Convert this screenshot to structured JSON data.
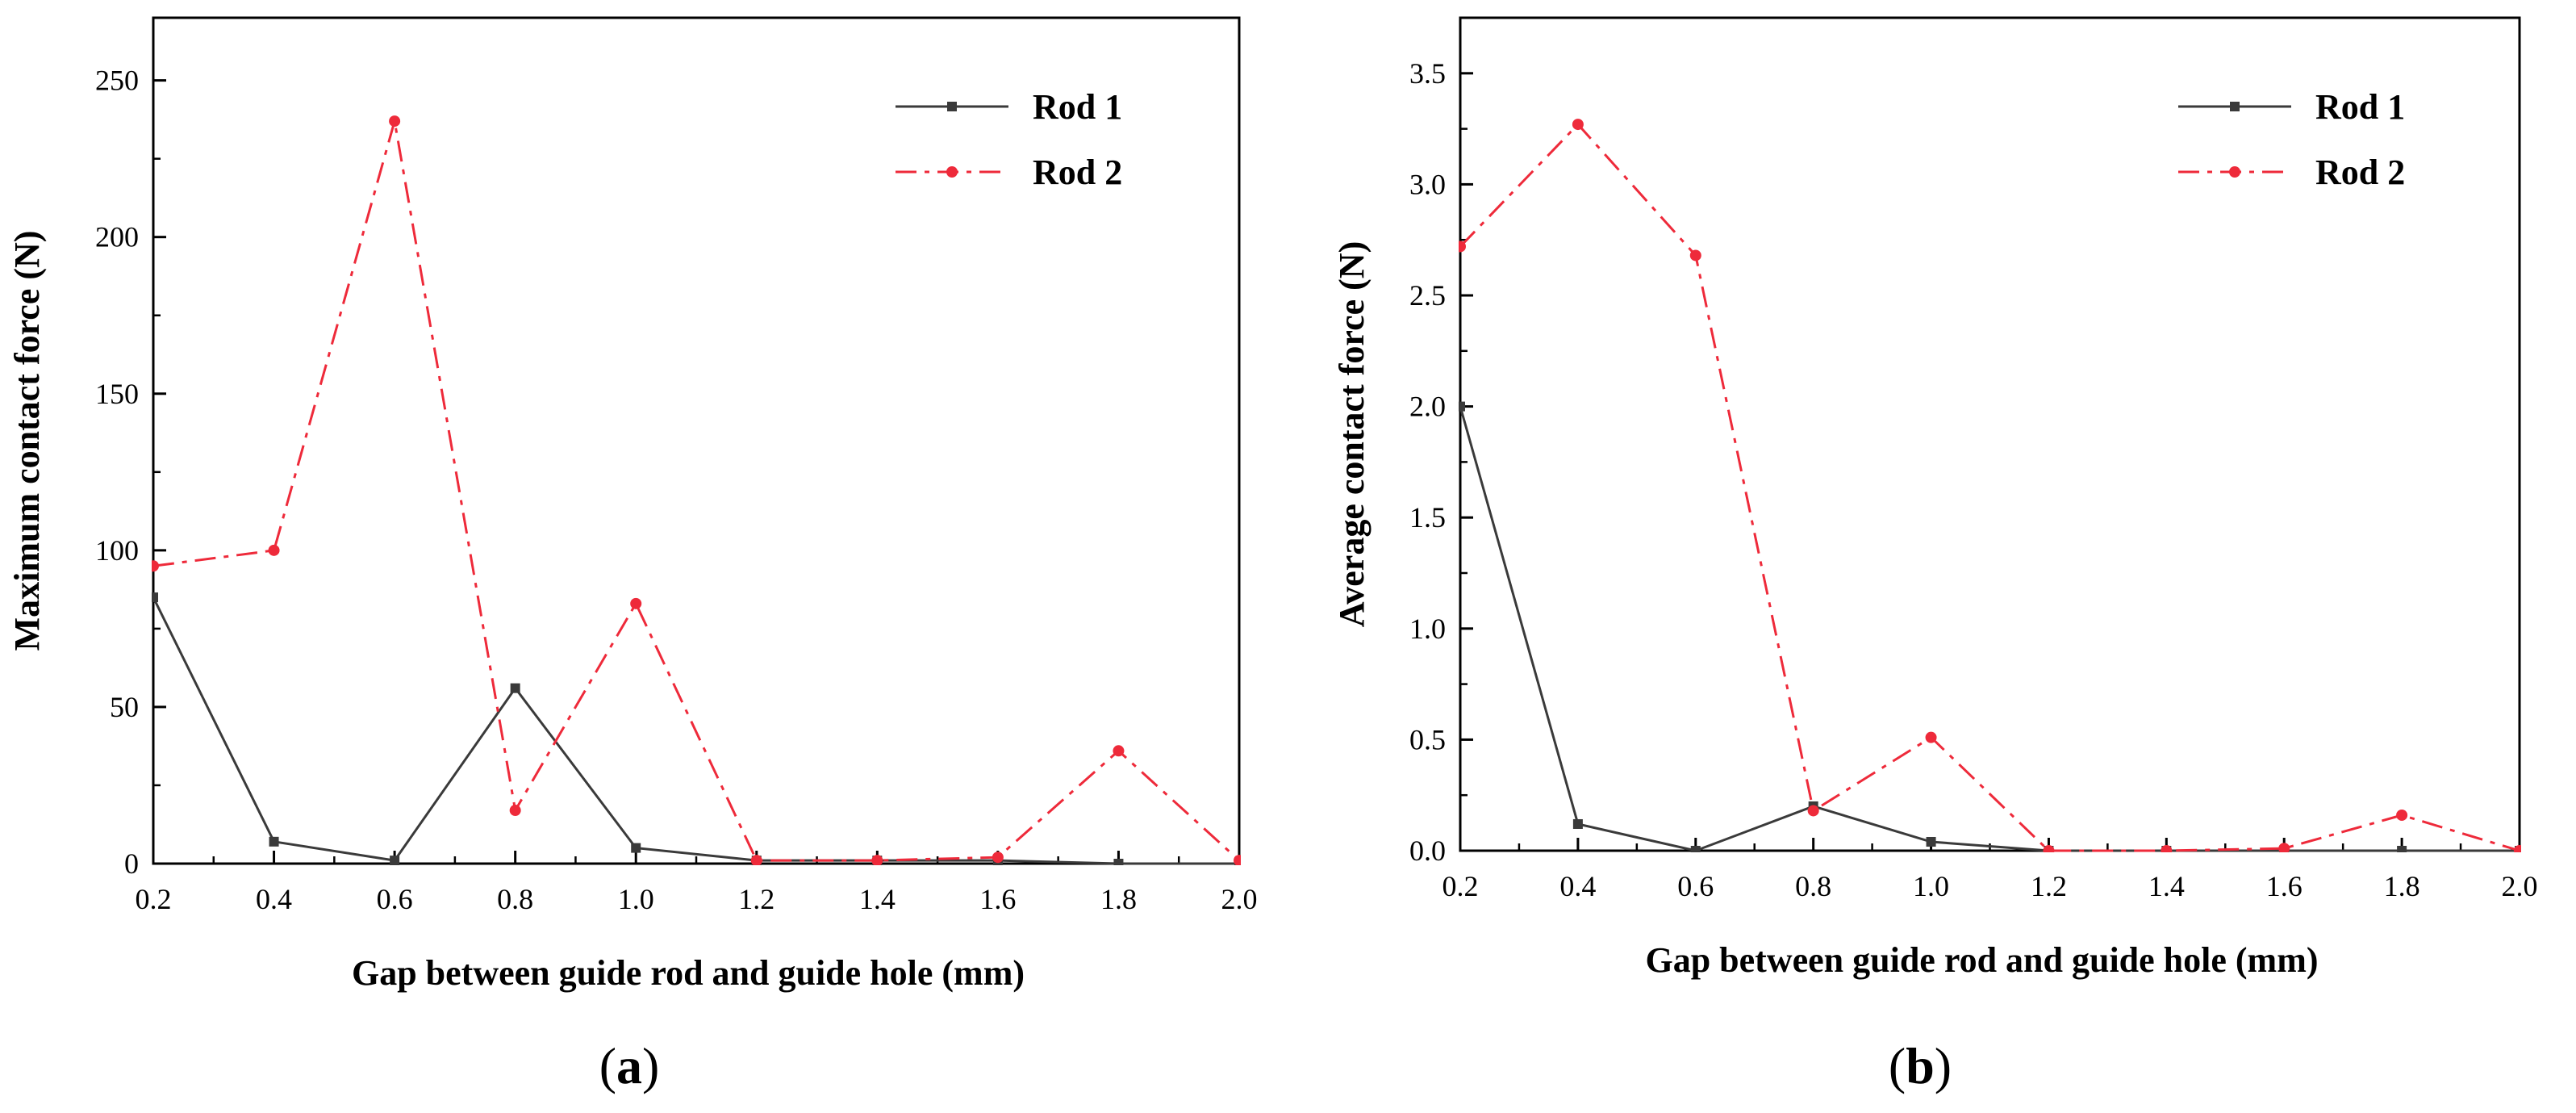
{
  "chart_data": [
    {
      "type": "line",
      "panel_label": "(a)",
      "panel_letter": "a",
      "xlabel": "Gap between guide rod and guide hole (mm)",
      "ylabel": "Maximum contact force (N)",
      "xlim": [
        0.2,
        2.0
      ],
      "ylim": [
        0,
        270
      ],
      "x_ticks": [
        "0.2",
        "0.4",
        "0.6",
        "0.8",
        "1.0",
        "1.2",
        "1.4",
        "1.6",
        "1.8",
        "2.0"
      ],
      "y_ticks": [
        "0",
        "50",
        "100",
        "150",
        "200",
        "250"
      ],
      "legend_position": "top-right",
      "x": [
        0.2,
        0.4,
        0.6,
        0.8,
        1.0,
        1.2,
        1.4,
        1.6,
        1.8,
        2.0
      ],
      "series": [
        {
          "name": "Rod 1",
          "color": "#3a3a3a",
          "style": "solid",
          "marker": "square",
          "values": [
            85,
            7,
            1,
            56,
            5,
            1,
            1,
            1,
            0,
            0
          ]
        },
        {
          "name": "Rod 2",
          "color": "#ee2a3a",
          "style": "dash-dot",
          "marker": "circle",
          "values": [
            95,
            100,
            237,
            17,
            83,
            1,
            1,
            2,
            36,
            1
          ]
        }
      ]
    },
    {
      "type": "line",
      "panel_label": "(b)",
      "panel_letter": "b",
      "xlabel": "Gap between guide rod and guide hole (mm)",
      "ylabel": "Average contact force (N)",
      "xlim": [
        0.2,
        2.0
      ],
      "ylim": [
        0,
        3.75
      ],
      "x_ticks": [
        "0.2",
        "0.4",
        "0.6",
        "0.8",
        "1.0",
        "1.2",
        "1.4",
        "1.6",
        "1.8",
        "2.0"
      ],
      "y_ticks": [
        "0.0",
        "0.5",
        "1.0",
        "1.5",
        "2.0",
        "2.5",
        "3.0",
        "3.5"
      ],
      "legend_position": "top-right",
      "x": [
        0.2,
        0.4,
        0.6,
        0.8,
        1.0,
        1.2,
        1.4,
        1.6,
        1.8,
        2.0
      ],
      "series": [
        {
          "name": "Rod 1",
          "color": "#3a3a3a",
          "style": "solid",
          "marker": "square",
          "values": [
            2.0,
            0.12,
            0.0,
            0.2,
            0.04,
            0.0,
            0.0,
            0.0,
            0.0,
            0.0
          ]
        },
        {
          "name": "Rod 2",
          "color": "#ee2a3a",
          "style": "dash-dot",
          "marker": "circle",
          "values": [
            2.72,
            3.27,
            2.68,
            0.18,
            0.51,
            0.0,
            0.0,
            0.01,
            0.16,
            0.0
          ]
        }
      ]
    }
  ]
}
